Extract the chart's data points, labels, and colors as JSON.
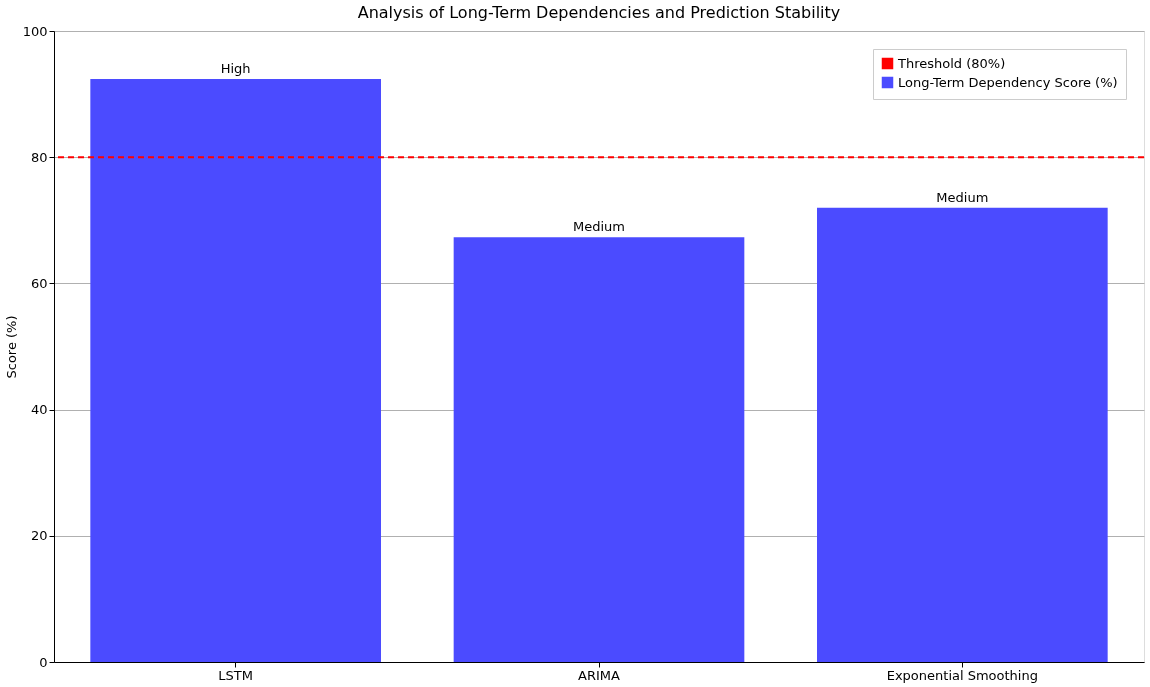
{
  "chart_data": {
    "type": "bar",
    "title": "Analysis of Long-Term Dependencies and Prediction Stability",
    "ylabel": "Score (%)",
    "categories": [
      "LSTM",
      "ARIMA",
      "Exponential Smoothing"
    ],
    "series": [
      {
        "name": "Long-Term Dependency Score (%)",
        "color": "#4b4bff",
        "values": [
          92.4,
          67.3,
          72
        ],
        "value_labels": [
          "High",
          "Medium",
          "Medium"
        ]
      }
    ],
    "ylim": [
      0,
      100
    ],
    "yticks": [
      0,
      20,
      40,
      60,
      80,
      100
    ],
    "grid": "y",
    "legend": "top right",
    "ref_lines": [
      {
        "axis": "y",
        "value": 80,
        "label": "Threshold (80%)",
        "color": "#ff0000",
        "line_style": "dashed"
      }
    ]
  }
}
